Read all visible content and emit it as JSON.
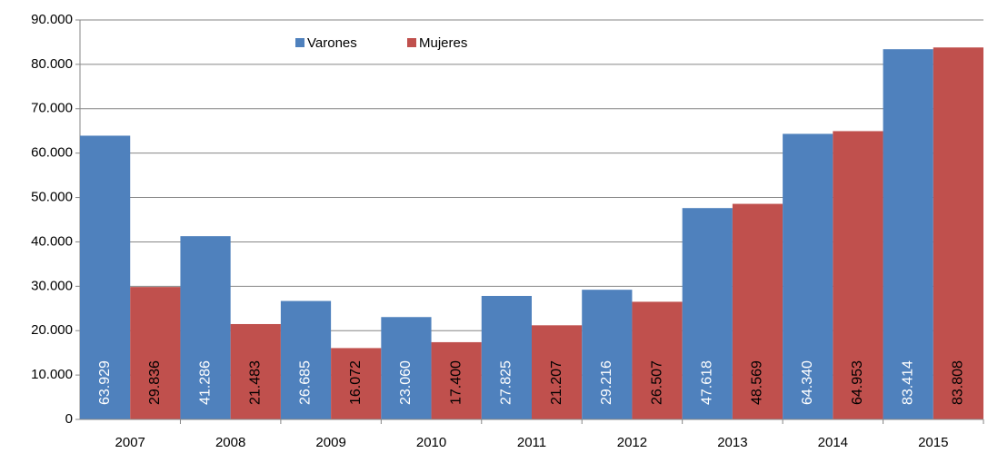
{
  "chart_data": {
    "type": "bar",
    "categories": [
      "2007",
      "2008",
      "2009",
      "2010",
      "2011",
      "2012",
      "2013",
      "2014",
      "2015"
    ],
    "series": [
      {
        "name": "Varones",
        "color": "#4f81bd",
        "values": [
          63929,
          41286,
          26685,
          23060,
          27825,
          29216,
          47618,
          64340,
          83414
        ],
        "value_labels": [
          "63.929",
          "41.286",
          "26.685",
          "23.060",
          "27.825",
          "29.216",
          "47.618",
          "64.340",
          "83.414"
        ]
      },
      {
        "name": "Mujeres",
        "color": "#c0504d",
        "values": [
          29836,
          21483,
          16072,
          17400,
          21207,
          26507,
          48569,
          64953,
          83808
        ],
        "value_labels": [
          "29.836",
          "21.483",
          "16.072",
          "17.400",
          "21.207",
          "26.507",
          "48.569",
          "64.953",
          "83.808"
        ]
      }
    ],
    "ylim": [
      0,
      90000
    ],
    "yticks": [
      0,
      {
        "value": 10000,
        "label": "10.000"
      },
      {
        "value": 20000,
        "label": "20.000"
      },
      {
        "value": 30000,
        "label": "30.000"
      },
      {
        "value": 40000,
        "label": "40.000"
      },
      {
        "value": 50000,
        "label": "50.000"
      },
      {
        "value": 60000,
        "label": "60.000"
      },
      {
        "value": 70000,
        "label": "70.000"
      },
      {
        "value": 80000,
        "label": "80.000"
      },
      {
        "value": 90000,
        "label": "90.000"
      }
    ],
    "grid": true
  }
}
